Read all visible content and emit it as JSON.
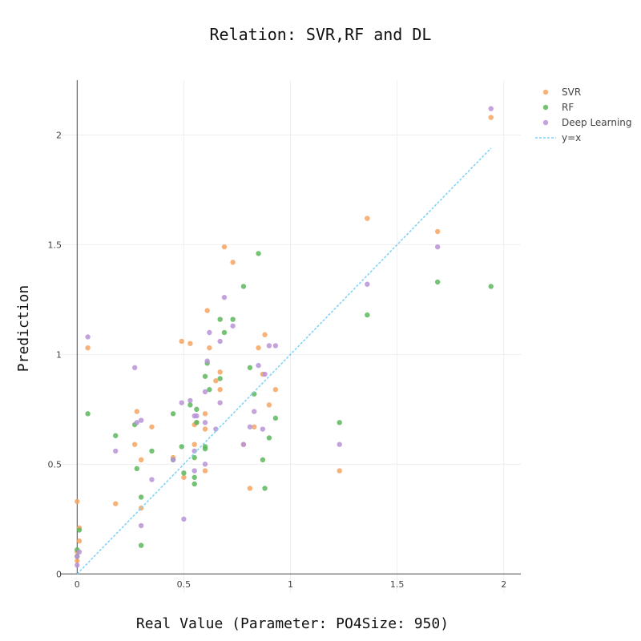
{
  "chart_data": {
    "type": "scatter",
    "title": "Relation: SVR,RF and DL",
    "xlabel": "Real Value  (Parameter: PO4Size: 950)",
    "ylabel": "Prediction",
    "xlim": [
      -0.08,
      2.08
    ],
    "ylim": [
      -0.05,
      2.25
    ],
    "x_ticks": [
      0,
      0.5,
      1,
      1.5,
      2
    ],
    "x_tick_labels": [
      "0",
      "0.5",
      "1",
      "1.5",
      "2"
    ],
    "y_ticks": [
      0,
      0.5,
      1,
      1.5,
      2
    ],
    "y_tick_labels": [
      "0",
      "0.5",
      "1",
      "1.5",
      "2"
    ],
    "grid": true,
    "legend_position": "top-right",
    "series": [
      {
        "name": "SVR",
        "color": "#f4a460",
        "points": [
          [
            0.0,
            0.33
          ],
          [
            0.01,
            0.21
          ],
          [
            0.01,
            0.15
          ],
          [
            0.0,
            0.1
          ],
          [
            0.0,
            0.06
          ],
          [
            0.05,
            1.03
          ],
          [
            0.18,
            0.32
          ],
          [
            0.27,
            0.59
          ],
          [
            0.28,
            0.74
          ],
          [
            0.3,
            0.52
          ],
          [
            0.3,
            0.3
          ],
          [
            0.35,
            0.67
          ],
          [
            0.45,
            0.53
          ],
          [
            0.49,
            1.06
          ],
          [
            0.5,
            0.44
          ],
          [
            0.53,
            1.05
          ],
          [
            0.55,
            0.59
          ],
          [
            0.55,
            0.68
          ],
          [
            0.56,
            0.69
          ],
          [
            0.6,
            0.47
          ],
          [
            0.6,
            0.66
          ],
          [
            0.6,
            0.73
          ],
          [
            0.61,
            1.2
          ],
          [
            0.62,
            1.03
          ],
          [
            0.65,
            0.88
          ],
          [
            0.67,
            0.92
          ],
          [
            0.67,
            0.84
          ],
          [
            0.69,
            1.49
          ],
          [
            0.73,
            1.42
          ],
          [
            0.78,
            0.59
          ],
          [
            0.81,
            0.39
          ],
          [
            0.83,
            0.67
          ],
          [
            0.85,
            1.03
          ],
          [
            0.87,
            0.91
          ],
          [
            0.88,
            1.09
          ],
          [
            0.9,
            0.77
          ],
          [
            0.93,
            0.84
          ],
          [
            1.23,
            0.47
          ],
          [
            1.36,
            1.62
          ],
          [
            1.69,
            1.56
          ],
          [
            1.94,
            2.08
          ]
        ]
      },
      {
        "name": "RF",
        "color": "#5cb85c",
        "points": [
          [
            0.0,
            0.11
          ],
          [
            0.01,
            0.2
          ],
          [
            0.0,
            0.08
          ],
          [
            0.05,
            0.73
          ],
          [
            0.18,
            0.63
          ],
          [
            0.27,
            0.68
          ],
          [
            0.28,
            0.48
          ],
          [
            0.3,
            0.35
          ],
          [
            0.3,
            0.13
          ],
          [
            0.35,
            0.56
          ],
          [
            0.45,
            0.73
          ],
          [
            0.45,
            0.52
          ],
          [
            0.49,
            0.58
          ],
          [
            0.5,
            0.46
          ],
          [
            0.53,
            0.77
          ],
          [
            0.55,
            0.53
          ],
          [
            0.55,
            0.44
          ],
          [
            0.55,
            0.41
          ],
          [
            0.56,
            0.75
          ],
          [
            0.56,
            0.69
          ],
          [
            0.6,
            0.9
          ],
          [
            0.6,
            0.58
          ],
          [
            0.6,
            0.57
          ],
          [
            0.61,
            0.96
          ],
          [
            0.62,
            0.84
          ],
          [
            0.67,
            1.16
          ],
          [
            0.67,
            0.89
          ],
          [
            0.69,
            1.1
          ],
          [
            0.73,
            1.16
          ],
          [
            0.78,
            1.31
          ],
          [
            0.81,
            0.94
          ],
          [
            0.83,
            0.82
          ],
          [
            0.85,
            1.46
          ],
          [
            0.87,
            0.52
          ],
          [
            0.88,
            0.39
          ],
          [
            0.9,
            0.62
          ],
          [
            0.93,
            0.71
          ],
          [
            1.23,
            0.69
          ],
          [
            1.36,
            1.18
          ],
          [
            1.69,
            1.33
          ],
          [
            1.94,
            1.31
          ]
        ]
      },
      {
        "name": "Deep Learning",
        "color": "#b993d6",
        "points": [
          [
            0.0,
            0.08
          ],
          [
            0.01,
            0.1
          ],
          [
            0.0,
            0.04
          ],
          [
            0.05,
            1.08
          ],
          [
            0.18,
            0.56
          ],
          [
            0.27,
            0.94
          ],
          [
            0.28,
            0.69
          ],
          [
            0.3,
            0.7
          ],
          [
            0.3,
            0.22
          ],
          [
            0.35,
            0.43
          ],
          [
            0.45,
            0.52
          ],
          [
            0.49,
            0.78
          ],
          [
            0.5,
            0.25
          ],
          [
            0.53,
            0.79
          ],
          [
            0.55,
            0.72
          ],
          [
            0.55,
            0.56
          ],
          [
            0.55,
            0.47
          ],
          [
            0.56,
            0.72
          ],
          [
            0.6,
            0.83
          ],
          [
            0.6,
            0.69
          ],
          [
            0.6,
            0.5
          ],
          [
            0.61,
            0.97
          ],
          [
            0.62,
            1.1
          ],
          [
            0.65,
            0.66
          ],
          [
            0.67,
            1.06
          ],
          [
            0.67,
            0.78
          ],
          [
            0.69,
            1.26
          ],
          [
            0.73,
            1.13
          ],
          [
            0.78,
            0.59
          ],
          [
            0.81,
            0.67
          ],
          [
            0.83,
            0.74
          ],
          [
            0.85,
            0.95
          ],
          [
            0.87,
            0.66
          ],
          [
            0.88,
            0.91
          ],
          [
            0.9,
            1.04
          ],
          [
            0.93,
            1.04
          ],
          [
            1.23,
            0.59
          ],
          [
            1.36,
            1.32
          ],
          [
            1.69,
            1.49
          ],
          [
            1.94,
            2.12
          ]
        ]
      },
      {
        "name": "y=x",
        "color": "#7fd3f7",
        "style": "dashed-line",
        "points": [
          [
            0,
            0
          ],
          [
            1.94,
            1.94
          ]
        ]
      }
    ]
  }
}
